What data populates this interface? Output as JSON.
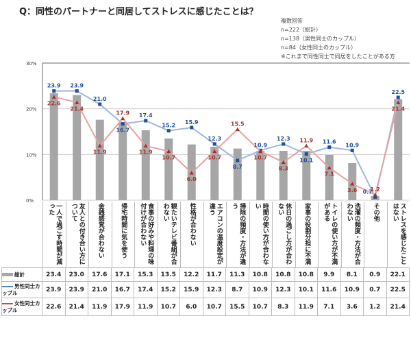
{
  "title": "Q：同性のパートナーと同居してストレスに感じたことは？",
  "notes": [
    "複数回答",
    "n=222（総計）",
    "n=138（男性同士のカップル）",
    "n=84（女性同士のカップル）",
    "※これまで同性同士で同居をしたことがある方"
  ],
  "chart_data": {
    "type": "bar",
    "title": "Q：同性のパートナーと同居してストレスに感じたことは？",
    "ylim": [
      0,
      30
    ],
    "yticks": [
      "0%",
      "10%",
      "20%",
      "30%"
    ],
    "categories": [
      "一人で過ごす時間が減った",
      "友人との付き合い方について",
      "金銭感覚が合わない",
      "帰宅時間に気を使う",
      "食事の好みや料理の味付けが合わない",
      "観たいテレビ番組が合わない",
      "性格が合わない",
      "エアコンの温度設定が違う",
      "掃除の頻度・方法が違う",
      "時間の使い方が合わない",
      "休日の過ごし方が合わない",
      "家事の役割分担に不満",
      "トイレの使い方が不満がある",
      "洗濯の頻度・方法が合わない",
      "その他",
      "ストレスを感じたことはない"
    ],
    "series": [
      {
        "name": "総計",
        "type": "bar",
        "color": "#a6a6a6",
        "values": [
          23.4,
          23.0,
          17.6,
          17.1,
          15.3,
          13.5,
          12.2,
          11.7,
          11.3,
          10.8,
          10.8,
          10.8,
          9.9,
          8.1,
          0.9,
          22.1
        ]
      },
      {
        "name": "男性同士カップル",
        "type": "line",
        "color": "#4f81bd",
        "values": [
          23.9,
          23.9,
          21.0,
          16.7,
          17.4,
          15.2,
          15.9,
          12.3,
          8.7,
          10.9,
          12.3,
          10.1,
          11.6,
          10.9,
          0.7,
          22.5
        ]
      },
      {
        "name": "女性同士カップル",
        "type": "line",
        "color": "#c0504d",
        "values": [
          22.6,
          21.4,
          11.9,
          17.9,
          11.9,
          10.7,
          6.0,
          10.7,
          15.5,
          10.7,
          8.3,
          11.9,
          7.1,
          3.6,
          1.2,
          21.4
        ]
      }
    ],
    "legend": [
      "総計",
      "男性同士カップル",
      "女性同士カップル"
    ],
    "grid": true
  }
}
